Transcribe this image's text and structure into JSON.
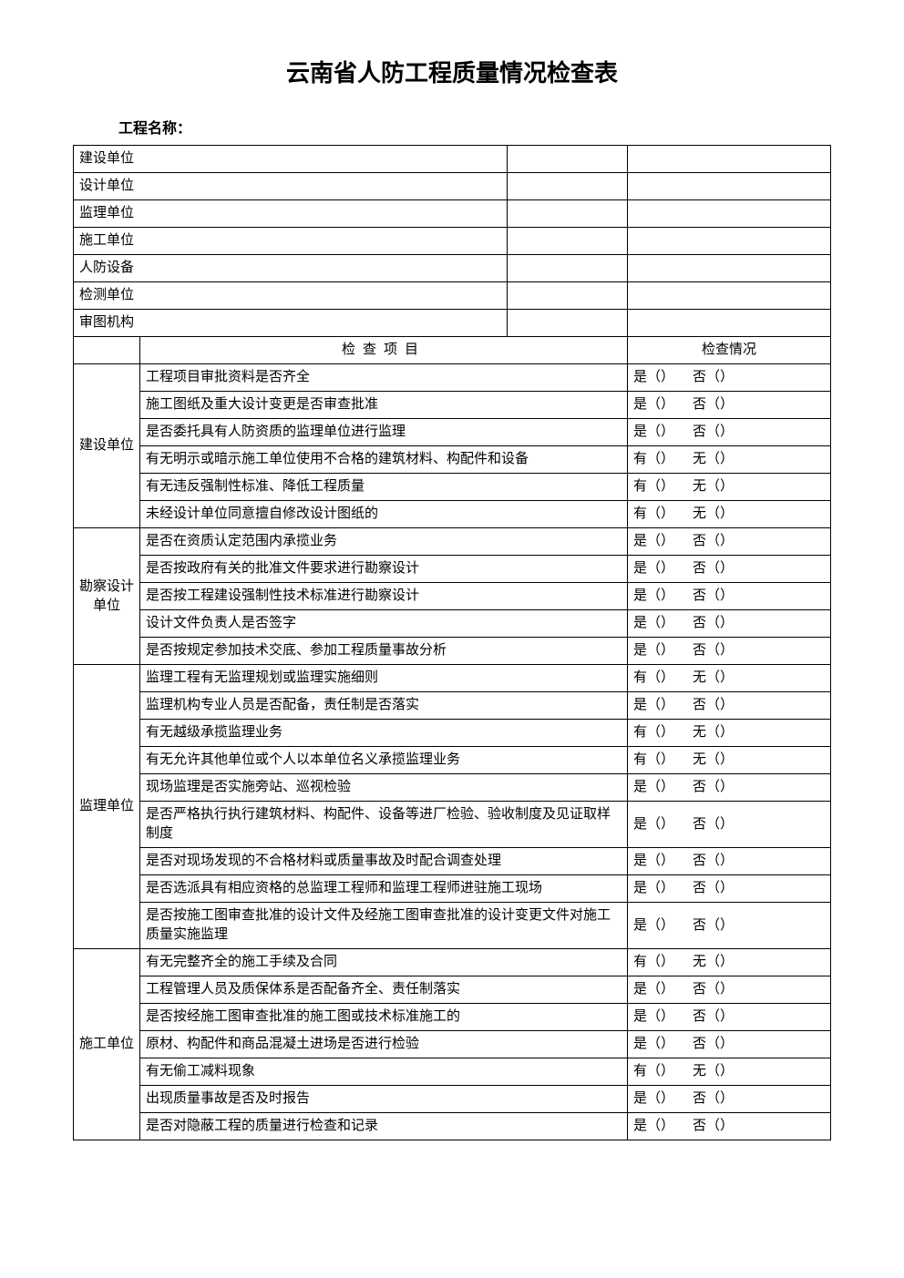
{
  "title": "云南省人防工程质量情况检查表",
  "project_name_label": "工程名称：",
  "header_rows": [
    {
      "label": "建设单位",
      "value": "",
      "status": ""
    },
    {
      "label": "设计单位",
      "value": "",
      "status": ""
    },
    {
      "label": "监理单位",
      "value": "",
      "status": ""
    },
    {
      "label": "施工单位",
      "value": "",
      "status": ""
    },
    {
      "label": "人防设备",
      "value": "",
      "status": ""
    },
    {
      "label": "检测单位",
      "value": "",
      "status": ""
    },
    {
      "label": "审图机构",
      "value": "",
      "status": ""
    }
  ],
  "check_item_header": "检查项目",
  "check_status_header": "检查情况",
  "yes_label": "是",
  "no_label": "否",
  "has_label": "有",
  "none_label": "无",
  "paren": "（）",
  "groups": [
    {
      "name": "建设单位",
      "items": [
        {
          "text": "工程项目审批资料是否齐全",
          "type": "yn"
        },
        {
          "text": "施工图纸及重大设计变更是否审查批准",
          "type": "yn"
        },
        {
          "text": "是否委托具有人防资质的监理单位进行监理",
          "type": "yn"
        },
        {
          "text": "有无明示或暗示施工单位使用不合格的建筑材料、构配件和设备",
          "type": "hn"
        },
        {
          "text": "有无违反强制性标准、降低工程质量",
          "type": "hn"
        },
        {
          "text": "未经设计单位同意擅自修改设计图纸的",
          "type": "hn"
        }
      ]
    },
    {
      "name": "勘察设计单位",
      "items": [
        {
          "text": "是否在资质认定范围内承揽业务",
          "type": "yn"
        },
        {
          "text": "是否按政府有关的批准文件要求进行勘察设计",
          "type": "yn"
        },
        {
          "text": "是否按工程建设强制性技术标准进行勘察设计",
          "type": "yn"
        },
        {
          "text": "设计文件负责人是否签字",
          "type": "yn"
        },
        {
          "text": "是否按规定参加技术交底、参加工程质量事故分析",
          "type": "yn"
        }
      ]
    },
    {
      "name": "监理单位",
      "items": [
        {
          "text": "监理工程有无监理规划或监理实施细则",
          "type": "hn"
        },
        {
          "text": "监理机构专业人员是否配备，责任制是否落实",
          "type": "yn"
        },
        {
          "text": "有无越级承揽监理业务",
          "type": "hn"
        },
        {
          "text": "有无允许其他单位或个人以本单位名义承揽监理业务",
          "type": "hn"
        },
        {
          "text": "现场监理是否实施旁站、巡视检验",
          "type": "yn"
        },
        {
          "text": "是否严格执行执行建筑材料、构配件、设备等进厂检验、验收制度及见证取样制度",
          "type": "yn"
        },
        {
          "text": "是否对现场发现的不合格材料或质量事故及时配合调查处理",
          "type": "yn"
        },
        {
          "text": "是否选派具有相应资格的总监理工程师和监理工程师进驻施工现场",
          "type": "yn"
        },
        {
          "text": "是否按施工图审查批准的设计文件及经施工图审查批准的设计变更文件对施工质量实施监理",
          "type": "yn"
        }
      ]
    },
    {
      "name": "施工单位",
      "items": [
        {
          "text": "有无完整齐全的施工手续及合同",
          "type": "hn"
        },
        {
          "text": "工程管理人员及质保体系是否配备齐全、责任制落实",
          "type": "yn"
        },
        {
          "text": "是否按经施工图审查批准的施工图或技术标准施工的",
          "type": "yn"
        },
        {
          "text": "原材、构配件和商品混凝土进场是否进行检验",
          "type": "yn"
        },
        {
          "text": "有无偷工减料现象",
          "type": "hn"
        },
        {
          "text": "出现质量事故是否及时报告",
          "type": "yn"
        },
        {
          "text": "是否对隐蔽工程的质量进行检查和记录",
          "type": "yn"
        }
      ]
    }
  ]
}
